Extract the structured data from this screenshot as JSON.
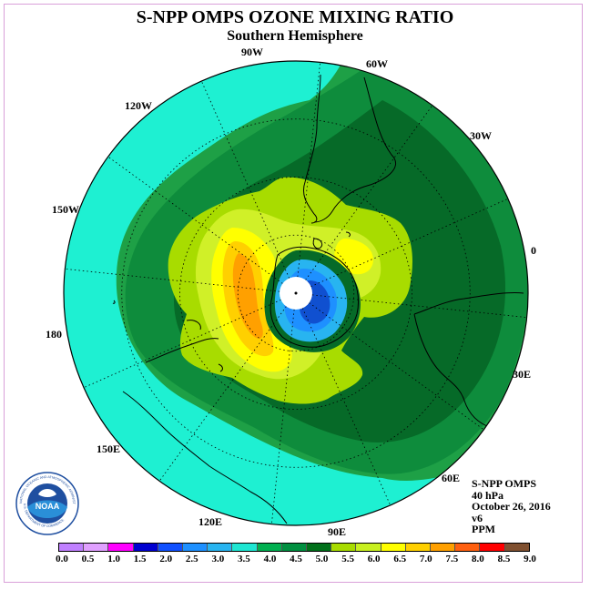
{
  "title": "S-NPP OMPS OZONE MIXING RATIO",
  "subtitle": "Southern Hemisphere",
  "longitude_labels": {
    "90W": "90W",
    "60W": "60W",
    "120W": "120W",
    "30W": "30W",
    "150W": "150W",
    "0": "0",
    "180": "180",
    "30E": "30E",
    "150E": "150E",
    "60E": "60E",
    "120E": "120E",
    "90E": "90E"
  },
  "info": {
    "instrument": "S-NPP OMPS",
    "level": "40 hPa",
    "date": "October 26, 2016",
    "version": "v6",
    "units": "PPM"
  },
  "logo": {
    "text": "NOAA",
    "ring_text": "NATIONAL OCEANIC AND ATMOSPHERIC ADMINISTRATION",
    "ring_text_bottom": "U.S. DEPARTMENT OF COMMERCE"
  },
  "colorbar": {
    "ticks": [
      "0.0",
      "0.5",
      "1.0",
      "1.5",
      "2.0",
      "2.5",
      "3.0",
      "3.5",
      "4.0",
      "4.5",
      "5.0",
      "5.5",
      "6.0",
      "6.5",
      "7.0",
      "7.5",
      "8.0",
      "8.5",
      "9.0"
    ],
    "colors": [
      "#c080ff",
      "#e0a0ff",
      "#ff00ff",
      "#0000d0",
      "#1050ff",
      "#1e90ff",
      "#28b4f0",
      "#1ee6d2",
      "#00b050",
      "#009040",
      "#00701a",
      "#a8dc00",
      "#c8f020",
      "#ffff00",
      "#ffd000",
      "#ffa000",
      "#ff6010",
      "#ff0000",
      "#805030"
    ]
  },
  "map_colors": {
    "cyan": "#1ef0d2",
    "green_light": "#1ea046",
    "green_mid": "#0e8c3c",
    "green_dark": "#066a28",
    "lime": "#a8dc00",
    "yellow_green": "#d0f028",
    "yellow": "#ffff00",
    "gold": "#ffd000",
    "orange": "#ffa000",
    "blue_light": "#28b4f0",
    "blue": "#1e90ff",
    "blue_dark": "#1050d0"
  }
}
